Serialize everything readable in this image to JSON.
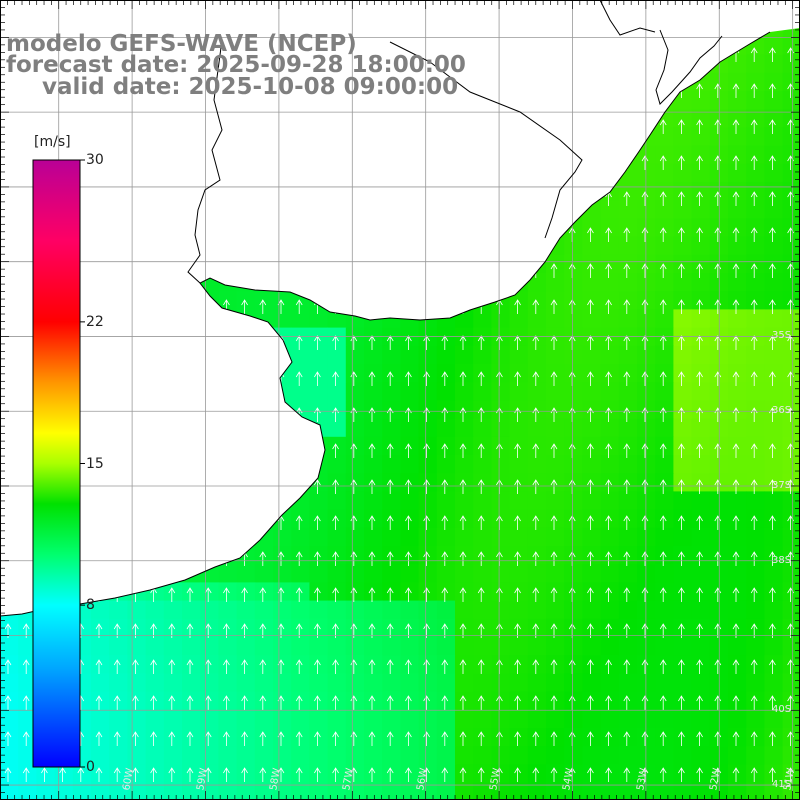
{
  "title": {
    "line1": "modelo GEFS-WAVE (NCEP)",
    "line2": "forecast date: 2025-09-28 18:00:00",
    "line3": "valid date: 2025-10-08 09:00:00"
  },
  "colorbar": {
    "units": "[m/s]",
    "ticks": [
      "30",
      "22",
      "15",
      "8",
      "0"
    ],
    "tick_values": [
      30,
      22,
      15,
      8,
      0
    ],
    "range": [
      0,
      30
    ],
    "colors": [
      "#0000ff",
      "#00b4ff",
      "#00ffff",
      "#00ff64",
      "#00e000",
      "#b4ff00",
      "#ffff00",
      "#ff9600",
      "#ff0000",
      "#ff0064",
      "#c80078",
      "#b40096"
    ]
  },
  "map": {
    "lat_labels": [
      "35S",
      "36S",
      "37S",
      "38S",
      "40S",
      "41S"
    ],
    "lat_label_values": [
      -35,
      -36,
      -37,
      -38,
      -40,
      -41
    ],
    "lon_labels": [
      "60W",
      "59W",
      "58W",
      "57W",
      "56W",
      "55W",
      "54W",
      "53W",
      "52W",
      "51W"
    ],
    "lon_label_values": [
      -60,
      -59,
      -58,
      -57,
      -56,
      -55,
      -54,
      -53,
      -52,
      -51
    ],
    "lat_range": [
      -41.2,
      -30.5
    ],
    "lon_range": [
      -61.8,
      -50.9
    ],
    "wind_direction": "from south",
    "land_color": "#ffffff",
    "coast_color": "#000000",
    "grid_color": "#999999",
    "arrow_color": "#ffffff"
  }
}
